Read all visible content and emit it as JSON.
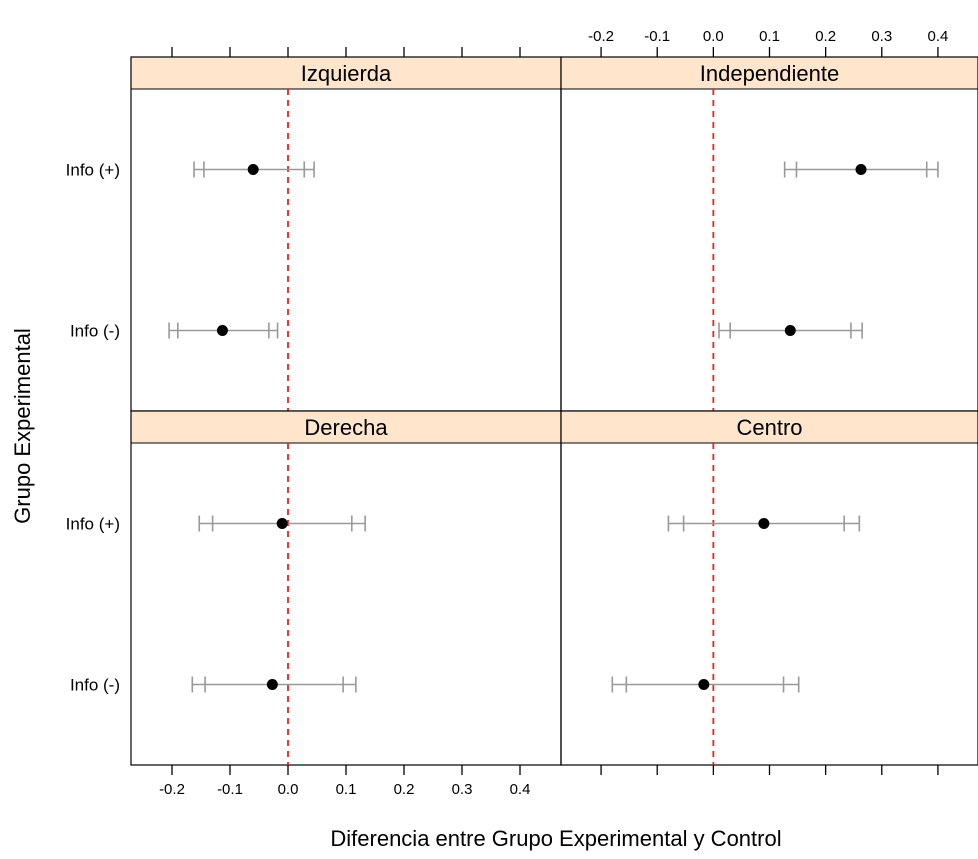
{
  "chart_data": {
    "type": "dot-errorbar",
    "xlabel": "Diferencia entre Grupo Experimental y Control",
    "ylabel": "Grupo Experimental",
    "xlim": [
      -0.25,
      0.45
    ],
    "xticks": [
      -0.2,
      -0.1,
      0.0,
      0.1,
      0.2,
      0.3,
      0.4
    ],
    "xtick_labels": [
      "-0.2",
      "-0.1",
      "0.0",
      "0.1",
      "0.2",
      "0.3",
      "0.4"
    ],
    "categories": [
      "Info (+)",
      "Info (-)"
    ],
    "reference_line": {
      "x": 0.0,
      "color": "#e8231f",
      "style": "dashed"
    },
    "colors": {
      "strip_background": "#ffe5cc",
      "errorbar": "#999999",
      "point": "#000000"
    },
    "panels": [
      {
        "name": "Izquierda",
        "points": [
          {
            "group": "Info (+)",
            "estimate": -0.06,
            "ci95": [
              -0.162,
              0.045
            ],
            "ci90": [
              -0.145,
              0.028
            ]
          },
          {
            "group": "Info (-)",
            "estimate": -0.113,
            "ci95": [
              -0.205,
              -0.018
            ],
            "ci90": [
              -0.19,
              -0.033
            ]
          }
        ]
      },
      {
        "name": "Independiente",
        "points": [
          {
            "group": "Info (+)",
            "estimate": 0.263,
            "ci95": [
              0.127,
              0.4
            ],
            "ci90": [
              0.148,
              0.38
            ]
          },
          {
            "group": "Info (-)",
            "estimate": 0.137,
            "ci95": [
              0.01,
              0.265
            ],
            "ci90": [
              0.03,
              0.245
            ]
          }
        ]
      },
      {
        "name": "Derecha",
        "points": [
          {
            "group": "Info (+)",
            "estimate": -0.01,
            "ci95": [
              -0.153,
              0.133
            ],
            "ci90": [
              -0.13,
              0.11
            ]
          },
          {
            "group": "Info (-)",
            "estimate": -0.027,
            "ci95": [
              -0.165,
              0.117
            ],
            "ci90": [
              -0.143,
              0.095
            ]
          }
        ]
      },
      {
        "name": "Centro",
        "points": [
          {
            "group": "Info (+)",
            "estimate": 0.09,
            "ci95": [
              -0.08,
              0.26
            ],
            "ci90": [
              -0.053,
              0.233
            ]
          },
          {
            "group": "Info (-)",
            "estimate": -0.017,
            "ci95": [
              -0.18,
              0.152
            ],
            "ci90": [
              -0.155,
              0.125
            ]
          }
        ]
      }
    ]
  }
}
